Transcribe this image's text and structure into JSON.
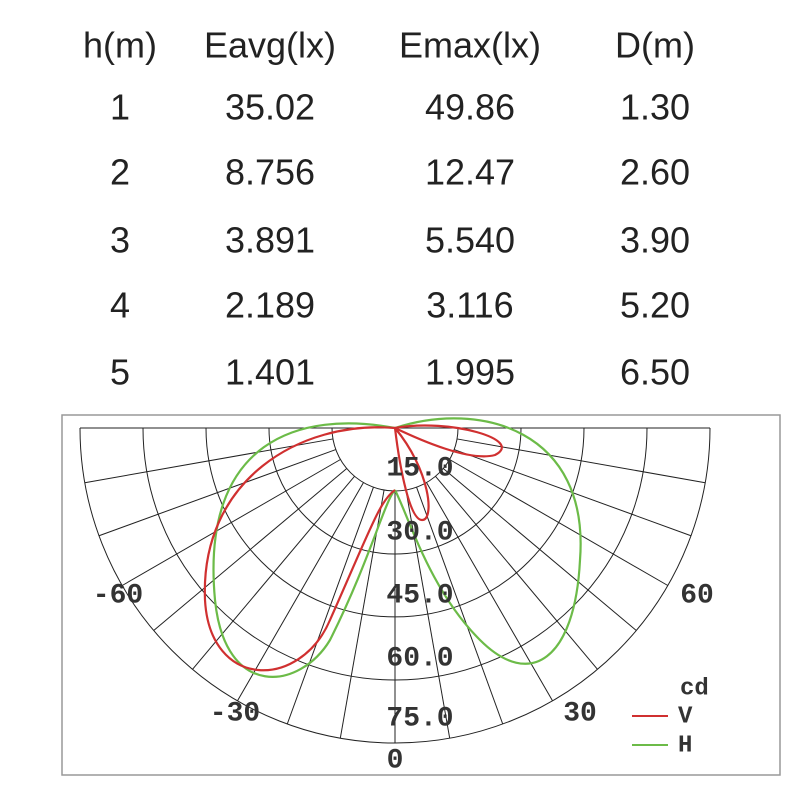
{
  "table": {
    "headers": [
      "h(m)",
      "Eavg(lx)",
      "Emax(lx)",
      "D(m)"
    ],
    "rows": [
      [
        "1",
        "35.02",
        "49.86",
        "1.30"
      ],
      [
        "2",
        "8.756",
        "12.47",
        "2.60"
      ],
      [
        "3",
        "3.891",
        "5.540",
        "3.90"
      ],
      [
        "4",
        "2.189",
        "3.116",
        "5.20"
      ],
      [
        "5",
        "1.401",
        "1.995",
        "6.50"
      ]
    ]
  },
  "diagram": {
    "radial_labels": [
      "15.0",
      "30.0",
      "45.0",
      "60.0",
      "75.0"
    ],
    "angle_labels": [
      "-60",
      "60",
      "-30",
      "30",
      "0"
    ],
    "legend": {
      "unit": "cd",
      "series": [
        {
          "name": "V",
          "color": "#d03030"
        },
        {
          "name": "H",
          "color": "#6cbb48"
        }
      ]
    }
  }
}
